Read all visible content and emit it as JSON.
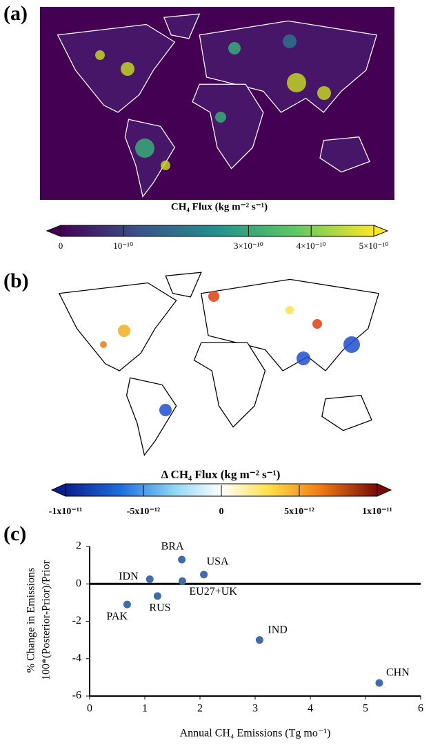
{
  "map_a": {
    "label": "(a)",
    "colorbar": {
      "title": "CH₄ Flux (kg m⁻² s⁻¹)",
      "lim": [
        0,
        5e-10
      ],
      "ticks": [
        0,
        {
          "value": 1e-10,
          "label": "10⁻¹⁰"
        },
        {
          "value": 3e-10,
          "label": "3×10⁻¹⁰"
        },
        {
          "value": 4e-10,
          "label": "4×10⁻¹⁰"
        },
        {
          "value": 5e-10,
          "label": "5×10⁻¹⁰"
        }
      ]
    }
  },
  "map_b": {
    "label": "(b)",
    "colorbar": {
      "title": "Δ CH₄ Flux (kg m⁻² s⁻¹)",
      "lim": [
        -1e-11,
        1e-11
      ],
      "ticks": [
        {
          "value": -1e-11,
          "label": "-1x10⁻¹¹"
        },
        {
          "value": -5e-12,
          "label": "-5x10⁻¹²"
        },
        0,
        {
          "value": 5e-12,
          "label": "5x10⁻¹²"
        },
        {
          "value": 1e-11,
          "label": "1x10⁻¹¹"
        }
      ]
    }
  },
  "chart_data": {
    "type": "scatter",
    "panel_label": "(c)",
    "x_label": "Annual CH₄ Emissions (Tg mo⁻¹)",
    "y_label": [
      "% Change in Emissions",
      "100*(Posterior-Prior)/Prior"
    ],
    "labels": [
      "CHN",
      "IND",
      "USA",
      "BRA",
      "EU27+UK",
      "RUS",
      "IDN",
      "PAK"
    ],
    "x": [
      5.25,
      3.08,
      2.07,
      1.67,
      1.68,
      1.23,
      1.09,
      0.68
    ],
    "values": [
      -5.3,
      -3.0,
      0.5,
      1.3,
      0.15,
      -0.65,
      0.25,
      -1.1
    ],
    "color": "#3f6ba8",
    "xlim": [
      0,
      6
    ],
    "xticks": [
      0,
      1,
      2,
      3,
      4,
      5,
      6
    ],
    "ylim": [
      -6,
      2
    ],
    "yticks": [
      -6,
      -4,
      -2,
      0,
      2
    ]
  }
}
